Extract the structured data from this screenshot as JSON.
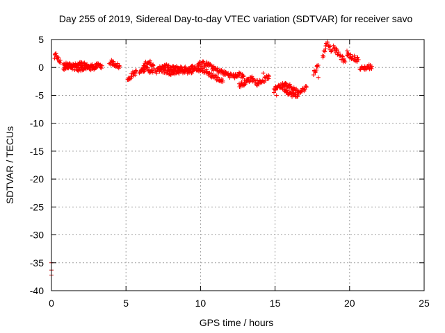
{
  "chart_data": {
    "type": "scatter",
    "title": "Day 255 of 2019, Sidereal Day-to-day VTEC variation (SDTVAR) for receiver savo",
    "xlabel": "GPS time / hours",
    "ylabel": "SDTVAR / TECUs",
    "xlim": [
      0,
      25
    ],
    "ylim": [
      -40,
      5
    ],
    "xticks": [
      "0",
      "5",
      "10",
      "15",
      "20",
      "25"
    ],
    "yticks": [
      "5",
      "0",
      "-5",
      "-10",
      "-15",
      "-20",
      "-25",
      "-30",
      "-35",
      "-40"
    ],
    "grid": true,
    "marker": "+",
    "series_color": "#ff0000",
    "outlier_color": "#c00000",
    "segments": [
      {
        "x": [
          0.2,
          0.3,
          0.45,
          0.6
        ],
        "y": [
          1.8,
          2.2,
          1.5,
          0.8
        ]
      },
      {
        "x": [
          0.8,
          1.2,
          1.6,
          2.0,
          2.5,
          3.0,
          3.4
        ],
        "y": [
          -0.2,
          0.4,
          0.3,
          0.6,
          0.1,
          0.3,
          0.3
        ]
      },
      {
        "x": [
          0.8,
          1.3,
          1.8,
          2.4,
          3.0
        ],
        "y": [
          0.6,
          0.1,
          -0.3,
          0.0,
          -0.1
        ]
      },
      {
        "x": [
          3.9,
          4.2,
          4.6
        ],
        "y": [
          1.0,
          0.7,
          0.1
        ]
      },
      {
        "x": [
          5.1,
          5.4,
          5.7
        ],
        "y": [
          -2.3,
          -1.3,
          -0.8
        ]
      },
      {
        "x": [
          5.9,
          6.1,
          6.4,
          6.7,
          6.9
        ],
        "y": [
          -1.0,
          -0.4,
          1.0,
          0.7,
          -0.2
        ]
      },
      {
        "x": [
          6.0,
          6.4,
          6.8
        ],
        "y": [
          -0.4,
          -0.2,
          -0.9
        ]
      },
      {
        "x": [
          7.0,
          7.5,
          8.0,
          8.5,
          9.0,
          9.5,
          10.0
        ],
        "y": [
          -0.8,
          0.3,
          -0.2,
          -0.1,
          -0.3,
          0.0,
          -0.5
        ]
      },
      {
        "x": [
          7.2,
          8.0,
          8.8,
          9.5
        ],
        "y": [
          -0.4,
          -0.9,
          -0.6,
          -0.7
        ]
      },
      {
        "x": [
          9.8,
          10.2,
          10.6
        ],
        "y": [
          0.6,
          0.7,
          0.5
        ]
      },
      {
        "x": [
          10.6,
          11.1,
          11.6,
          12.1,
          12.5
        ],
        "y": [
          0.3,
          -0.5,
          -1.0,
          -1.5,
          -1.6
        ]
      },
      {
        "x": [
          10.0,
          10.5,
          11.0,
          11.5
        ],
        "y": [
          -0.2,
          -1.0,
          -1.8,
          -2.6
        ]
      },
      {
        "x": [
          12.5,
          12.9
        ],
        "y": [
          -1.0,
          -1.6
        ]
      },
      {
        "x": [
          12.6,
          13.0,
          13.4
        ],
        "y": [
          -3.3,
          -2.6,
          -2.0
        ]
      },
      {
        "x": [
          13.4,
          13.8,
          14.2,
          14.6
        ],
        "y": [
          -1.8,
          -2.8,
          -2.3,
          -1.6
        ]
      },
      {
        "x": [
          14.9,
          15.2,
          15.5,
          15.8,
          16.1,
          16.4,
          16.8,
          17.1
        ],
        "y": [
          -4.4,
          -3.2,
          -3.5,
          -4.3,
          -4.8,
          -5.1,
          -4.1,
          -3.6
        ]
      },
      {
        "x": [
          15.5,
          16.0,
          16.5
        ],
        "y": [
          -3.0,
          -3.4,
          -4.2
        ]
      },
      {
        "x": [
          17.6,
          17.9
        ],
        "y": [
          -1.0,
          0.4
        ]
      },
      {
        "x": [
          18.2,
          18.5,
          18.8
        ],
        "y": [
          1.9,
          4.5,
          3.0
        ]
      },
      {
        "x": [
          18.9,
          19.3,
          19.7
        ],
        "y": [
          3.6,
          2.2,
          1.0
        ]
      },
      {
        "x": [
          19.8,
          20.2
        ],
        "y": [
          2.6,
          1.6
        ]
      },
      {
        "x": [
          20.3,
          20.6
        ],
        "y": [
          1.7,
          1.4
        ]
      },
      {
        "x": [
          20.7,
          21.1,
          21.5
        ],
        "y": [
          -0.3,
          0.0,
          0.2
        ]
      }
    ],
    "points": [
      {
        "x": 0.0,
        "y": -35.0
      },
      {
        "x": 0.0,
        "y": -36.3
      },
      {
        "x": 0.0,
        "y": -37.2
      },
      {
        "x": 17.9,
        "y": -1.8
      },
      {
        "x": 14.2,
        "y": -1.0
      },
      {
        "x": 15.1,
        "y": -5.0
      }
    ]
  }
}
